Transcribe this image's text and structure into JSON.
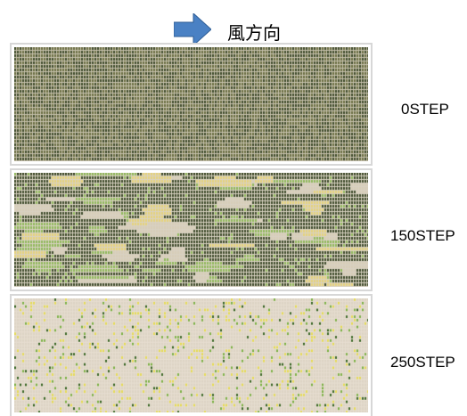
{
  "header": {
    "arrow_icon": "right-arrow-icon",
    "arrow_color": "#4a81c4",
    "wind_direction_label": "風方向"
  },
  "panels": [
    {
      "step_label": "0STEP",
      "dominant_state": "dense dark green-olive stripes (unburned vegetation)",
      "colors": {
        "background": "#c8c2ae",
        "dark_green": "#3e4a2a",
        "olive": "#6b6e42"
      },
      "fraction_dark": 0.95,
      "fraction_green": 0.0,
      "fraction_yellow": 0.0,
      "fraction_tan": 0.05
    },
    {
      "step_label": "150STEP",
      "dominant_state": "mixed dark, green, yellow and tan patches",
      "colors": {
        "background": "#d9d2c2",
        "dark_green": "#3e4a2a",
        "green": "#8fb85a",
        "yellow": "#e6d27a",
        "tan": "#d7cdb8"
      },
      "fraction_dark": 0.55,
      "fraction_green": 0.18,
      "fraction_yellow": 0.12,
      "fraction_tan": 0.15
    },
    {
      "step_label": "250STEP",
      "dominant_state": "mostly pale tan with scattered green and yellow dots",
      "colors": {
        "background": "#e6ddd0",
        "dark_green": "#3e6a2a",
        "green": "#7fb24a",
        "yellow": "#e5db5a",
        "tan": "#ddd4c4"
      },
      "fraction_dark": 0.03,
      "fraction_green": 0.05,
      "fraction_yellow": 0.08,
      "fraction_tan": 0.84
    }
  ]
}
